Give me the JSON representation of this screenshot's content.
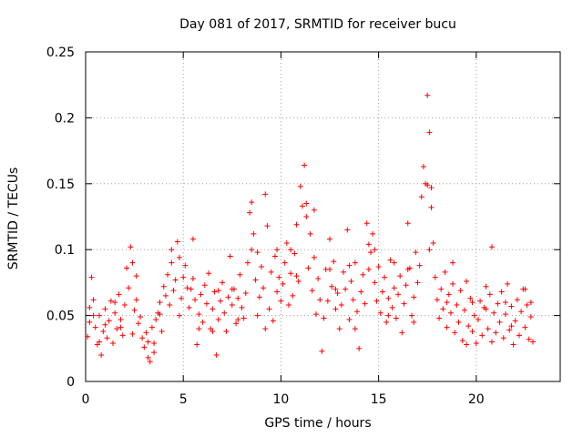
{
  "colors": {
    "series": "#ff0000",
    "grid": "#a0a0a0",
    "axis": "#000000"
  },
  "chart_data": {
    "type": "scatter",
    "title": "Day 081 of 2017, SRMTID for receiver bucu",
    "xlabel": "GPS time / hours",
    "ylabel": "SRMTID / TECUs",
    "xlim": [
      0,
      24.3
    ],
    "ylim": [
      0,
      0.25
    ],
    "grid": true,
    "marker": "+",
    "xticks": [
      0,
      5,
      10,
      15,
      20
    ],
    "xtick_labels": [
      "0",
      "5",
      "10",
      "15",
      "20"
    ],
    "yticks": [
      0,
      0.05,
      0.1,
      0.15,
      0.2,
      0.25
    ],
    "ytick_labels": [
      "0",
      "0.05",
      "0.1",
      "0.15",
      "0.2",
      "0.25"
    ],
    "series": [
      {
        "name": "SRMTID",
        "points": [
          [
            0.1,
            0.034
          ],
          [
            0.2,
            0.045
          ],
          [
            0.3,
            0.079
          ],
          [
            0.4,
            0.062
          ],
          [
            0.5,
            0.041
          ],
          [
            0.6,
            0.028
          ],
          [
            0.7,
            0.05
          ],
          [
            0.8,
            0.02
          ],
          [
            0.9,
            0.038
          ],
          [
            1.0,
            0.055
          ],
          [
            1.1,
            0.033
          ],
          [
            1.2,
            0.046
          ],
          [
            1.3,
            0.061
          ],
          [
            1.4,
            0.029
          ],
          [
            1.5,
            0.052
          ],
          [
            1.6,
            0.04
          ],
          [
            1.7,
            0.066
          ],
          [
            1.8,
            0.047
          ],
          [
            1.9,
            0.035
          ],
          [
            2.0,
            0.058
          ],
          [
            2.1,
            0.086
          ],
          [
            2.2,
            0.071
          ],
          [
            2.3,
            0.102
          ],
          [
            2.4,
            0.09
          ],
          [
            2.5,
            0.054
          ],
          [
            2.6,
            0.062
          ],
          [
            2.7,
            0.044
          ],
          [
            2.8,
            0.049
          ],
          [
            2.9,
            0.033
          ],
          [
            3.0,
            0.026
          ],
          [
            3.1,
            0.037
          ],
          [
            3.2,
            0.018
          ],
          [
            3.3,
            0.015
          ],
          [
            3.4,
            0.041
          ],
          [
            3.5,
            0.029
          ],
          [
            3.6,
            0.047
          ],
          [
            3.7,
            0.052
          ],
          [
            3.8,
            0.06
          ],
          [
            3.9,
            0.038
          ],
          [
            4.0,
            0.072
          ],
          [
            4.1,
            0.065
          ],
          [
            4.2,
            0.081
          ],
          [
            4.3,
            0.058
          ],
          [
            4.4,
            0.09
          ],
          [
            4.5,
            0.069
          ],
          [
            4.6,
            0.077
          ],
          [
            4.7,
            0.106
          ],
          [
            4.8,
            0.094
          ],
          [
            4.9,
            0.063
          ],
          [
            5.0,
            0.079
          ],
          [
            5.1,
            0.088
          ],
          [
            5.2,
            0.071
          ],
          [
            5.3,
            0.056
          ],
          [
            5.4,
            0.07
          ],
          [
            5.5,
            0.108
          ],
          [
            5.6,
            0.062
          ],
          [
            5.7,
            0.028
          ],
          [
            5.8,
            0.051
          ],
          [
            5.9,
            0.066
          ],
          [
            6.0,
            0.045
          ],
          [
            6.1,
            0.073
          ],
          [
            6.2,
            0.059
          ],
          [
            6.3,
            0.082
          ],
          [
            6.4,
            0.04
          ],
          [
            6.5,
            0.055
          ],
          [
            6.6,
            0.068
          ],
          [
            6.7,
            0.02
          ],
          [
            6.8,
            0.047
          ],
          [
            6.9,
            0.061
          ],
          [
            7.0,
            0.075
          ],
          [
            7.1,
            0.052
          ],
          [
            7.2,
            0.038
          ],
          [
            7.3,
            0.064
          ],
          [
            7.4,
            0.095
          ],
          [
            7.5,
            0.058
          ],
          [
            7.6,
            0.07
          ],
          [
            7.7,
            0.044
          ],
          [
            7.8,
            0.063
          ],
          [
            7.9,
            0.081
          ],
          [
            8.0,
            0.056
          ],
          [
            8.1,
            0.048
          ],
          [
            8.2,
            0.067
          ],
          [
            8.3,
            0.09
          ],
          [
            8.4,
            0.128
          ],
          [
            8.5,
            0.136
          ],
          [
            8.6,
            0.112
          ],
          [
            8.7,
            0.077
          ],
          [
            8.8,
            0.098
          ],
          [
            8.9,
            0.064
          ],
          [
            9.0,
            0.087
          ],
          [
            9.1,
            0.071
          ],
          [
            9.2,
            0.142
          ],
          [
            9.3,
            0.118
          ],
          [
            9.4,
            0.055
          ],
          [
            9.5,
            0.083
          ],
          [
            9.6,
            0.046
          ],
          [
            9.7,
            0.095
          ],
          [
            9.8,
            0.068
          ],
          [
            9.9,
            0.079
          ],
          [
            10.0,
            0.061
          ],
          [
            10.1,
            0.074
          ],
          [
            10.2,
            0.09
          ],
          [
            10.3,
            0.105
          ],
          [
            10.4,
            0.058
          ],
          [
            10.5,
            0.082
          ],
          [
            10.6,
            0.065
          ],
          [
            10.7,
            0.097
          ],
          [
            10.8,
            0.119
          ],
          [
            10.9,
            0.076
          ],
          [
            11.0,
            0.148
          ],
          [
            11.1,
            0.133
          ],
          [
            11.2,
            0.164
          ],
          [
            11.3,
            0.125
          ],
          [
            11.4,
            0.086
          ],
          [
            11.5,
            0.112
          ],
          [
            11.6,
            0.069
          ],
          [
            11.7,
            0.094
          ],
          [
            11.8,
            0.051
          ],
          [
            11.9,
            0.078
          ],
          [
            12.0,
            0.062
          ],
          [
            12.1,
            0.023
          ],
          [
            12.2,
            0.048
          ],
          [
            12.3,
            0.085
          ],
          [
            12.4,
            0.061
          ],
          [
            12.5,
            0.108
          ],
          [
            12.6,
            0.072
          ],
          [
            12.7,
            0.091
          ],
          [
            12.8,
            0.055
          ],
          [
            12.9,
            0.067
          ],
          [
            13.0,
            0.04
          ],
          [
            13.1,
            0.058
          ],
          [
            13.2,
            0.083
          ],
          [
            13.3,
            0.07
          ],
          [
            13.4,
            0.115
          ],
          [
            13.5,
            0.047
          ],
          [
            13.6,
            0.076
          ],
          [
            13.7,
            0.062
          ],
          [
            13.8,
            0.09
          ],
          [
            13.9,
            0.053
          ],
          [
            14.0,
            0.025
          ],
          [
            14.1,
            0.068
          ],
          [
            14.2,
            0.081
          ],
          [
            14.3,
            0.059
          ],
          [
            14.4,
            0.12
          ],
          [
            14.5,
            0.104
          ],
          [
            14.6,
            0.098
          ],
          [
            14.7,
            0.112
          ],
          [
            14.8,
            0.075
          ],
          [
            14.9,
            0.061
          ],
          [
            15.0,
            0.087
          ],
          [
            15.1,
            0.052
          ],
          [
            15.2,
            0.068
          ],
          [
            15.3,
            0.079
          ],
          [
            15.4,
            0.045
          ],
          [
            15.5,
            0.063
          ],
          [
            15.6,
            0.092
          ],
          [
            15.7,
            0.056
          ],
          [
            15.8,
            0.071
          ],
          [
            15.9,
            0.048
          ],
          [
            16.0,
            0.066
          ],
          [
            16.1,
            0.08
          ],
          [
            16.2,
            0.037
          ],
          [
            16.3,
            0.059
          ],
          [
            16.4,
            0.073
          ],
          [
            16.5,
            0.12
          ],
          [
            16.6,
            0.086
          ],
          [
            16.7,
            0.05
          ],
          [
            16.8,
            0.064
          ],
          [
            16.9,
            0.098
          ],
          [
            17.0,
            0.075
          ],
          [
            17.1,
            0.088
          ],
          [
            17.2,
            0.14
          ],
          [
            17.3,
            0.163
          ],
          [
            17.4,
            0.15
          ],
          [
            17.5,
            0.217
          ],
          [
            17.6,
            0.189
          ],
          [
            17.7,
            0.132
          ],
          [
            17.8,
            0.105
          ],
          [
            17.9,
            0.079
          ],
          [
            18.0,
            0.062
          ],
          [
            18.1,
            0.048
          ],
          [
            18.2,
            0.07
          ],
          [
            18.3,
            0.055
          ],
          [
            18.4,
            0.083
          ],
          [
            18.5,
            0.041
          ],
          [
            18.6,
            0.066
          ],
          [
            18.7,
            0.052
          ],
          [
            18.8,
            0.074
          ],
          [
            18.9,
            0.037
          ],
          [
            19.0,
            0.058
          ],
          [
            19.1,
            0.045
          ],
          [
            19.2,
            0.069
          ],
          [
            19.3,
            0.031
          ],
          [
            19.4,
            0.054
          ],
          [
            19.5,
            0.076
          ],
          [
            19.6,
            0.042
          ],
          [
            19.7,
            0.063
          ],
          [
            19.8,
            0.038
          ],
          [
            19.9,
            0.05
          ],
          [
            20.0,
            0.029
          ],
          [
            20.1,
            0.047
          ],
          [
            20.2,
            0.061
          ],
          [
            20.3,
            0.035
          ],
          [
            20.4,
            0.056
          ],
          [
            20.5,
            0.072
          ],
          [
            20.6,
            0.04
          ],
          [
            20.7,
            0.066
          ],
          [
            20.8,
            0.102
          ],
          [
            20.9,
            0.052
          ],
          [
            21.0,
            0.037
          ],
          [
            21.1,
            0.059
          ],
          [
            21.2,
            0.045
          ],
          [
            21.3,
            0.068
          ],
          [
            21.4,
            0.033
          ],
          [
            21.5,
            0.051
          ],
          [
            21.6,
            0.074
          ],
          [
            21.7,
            0.039
          ],
          [
            21.8,
            0.057
          ],
          [
            21.9,
            0.028
          ],
          [
            22.0,
            0.046
          ],
          [
            22.1,
            0.062
          ],
          [
            22.2,
            0.035
          ],
          [
            22.3,
            0.053
          ],
          [
            22.4,
            0.07
          ],
          [
            22.5,
            0.041
          ],
          [
            22.6,
            0.058
          ],
          [
            22.7,
            0.032
          ],
          [
            22.8,
            0.049
          ],
          [
            22.9,
            0.03
          ],
          [
            0.4,
            0.05
          ],
          [
            1.0,
            0.043
          ],
          [
            2.4,
            0.036
          ],
          [
            3.5,
            0.022
          ],
          [
            4.4,
            0.1
          ],
          [
            5.5,
            0.078
          ],
          [
            6.5,
            0.038
          ],
          [
            7.5,
            0.07
          ],
          [
            8.5,
            0.1
          ],
          [
            9.2,
            0.04
          ],
          [
            10.5,
            0.1
          ],
          [
            11.3,
            0.135
          ],
          [
            11.7,
            0.13
          ],
          [
            12.5,
            0.085
          ],
          [
            13.5,
            0.088
          ],
          [
            14.5,
            0.085
          ],
          [
            15.5,
            0.05
          ],
          [
            16.5,
            0.085
          ],
          [
            17.5,
            0.149
          ],
          [
            17.7,
            0.147
          ],
          [
            18.5,
            0.06
          ],
          [
            19.5,
            0.028
          ],
          [
            20.5,
            0.055
          ],
          [
            21.5,
            0.06
          ],
          [
            22.5,
            0.07
          ],
          [
            0.7,
            0.03
          ],
          [
            1.5,
            0.06
          ],
          [
            2.6,
            0.08
          ],
          [
            3.2,
            0.03
          ],
          [
            4.8,
            0.05
          ],
          [
            6.8,
            0.069
          ],
          [
            8.8,
            0.05
          ],
          [
            9.8,
            0.1
          ],
          [
            10.8,
            0.08
          ],
          [
            12.8,
            0.07
          ],
          [
            13.8,
            0.04
          ],
          [
            14.8,
            0.1
          ],
          [
            15.8,
            0.09
          ],
          [
            16.8,
            0.045
          ],
          [
            17.6,
            0.1
          ],
          [
            18.8,
            0.09
          ],
          [
            19.8,
            0.06
          ],
          [
            20.8,
            0.03
          ],
          [
            21.8,
            0.042
          ],
          [
            22.8,
            0.06
          ],
          [
            0.2,
            0.056
          ],
          [
            1.8,
            0.041
          ],
          [
            3.8,
            0.051
          ],
          [
            5.8,
            0.04
          ],
          [
            7.8,
            0.047
          ]
        ]
      }
    ]
  }
}
